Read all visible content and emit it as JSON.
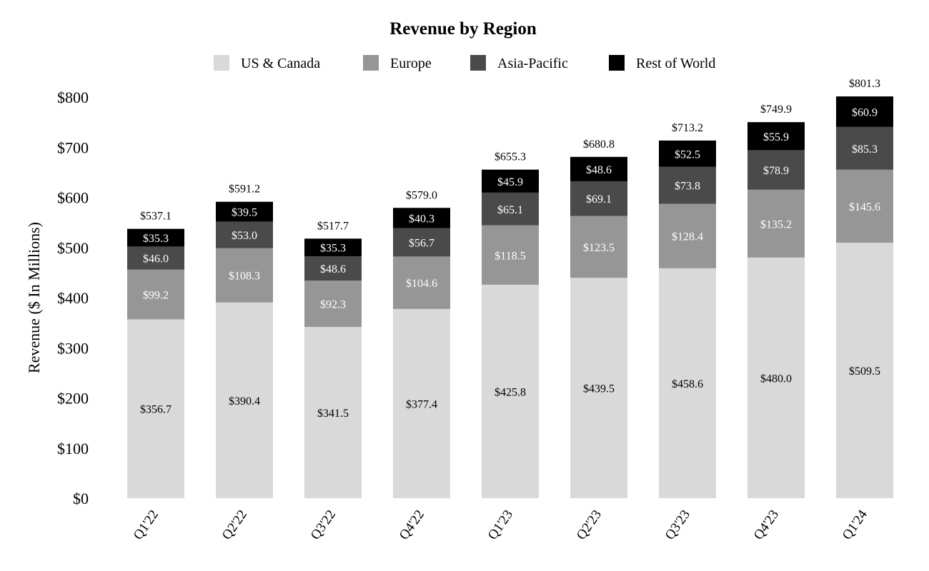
{
  "chart_data": {
    "type": "bar",
    "stacked": true,
    "title": "Revenue by Region",
    "xlabel": "",
    "ylabel": "Revenue ($ In Millions)",
    "ylim": [
      0,
      800
    ],
    "yticks": [
      0,
      100,
      200,
      300,
      400,
      500,
      600,
      700,
      800
    ],
    "ytick_labels": [
      "$0",
      "$100",
      "$200",
      "$300",
      "$400",
      "$500",
      "$600",
      "$700",
      "$800"
    ],
    "legend_position": "top",
    "categories": [
      "Q1'22",
      "Q2'22",
      "Q3'22",
      "Q4'22",
      "Q1'23",
      "Q2'23",
      "Q3'23",
      "Q4'23",
      "Q1'24"
    ],
    "series": [
      {
        "name": "US & Canada",
        "color": "#d9d9d9",
        "label_color": "#000000",
        "values": [
          356.7,
          390.4,
          341.5,
          377.4,
          425.8,
          439.5,
          458.6,
          480.0,
          509.5
        ],
        "labels": [
          "$356.7",
          "$390.4",
          "$341.5",
          "$377.4",
          "$425.8",
          "$439.5",
          "$458.6",
          "$480.0",
          "$509.5"
        ]
      },
      {
        "name": "Europe",
        "color": "#969696",
        "label_color": "#ffffff",
        "values": [
          99.2,
          108.3,
          92.3,
          104.6,
          118.5,
          123.5,
          128.4,
          135.2,
          145.6
        ],
        "labels": [
          "$99.2",
          "$108.3",
          "$92.3",
          "$104.6",
          "$118.5",
          "$123.5",
          "$128.4",
          "$135.2",
          "$145.6"
        ]
      },
      {
        "name": "Asia-Pacific",
        "color": "#4a4a4a",
        "label_color": "#ffffff",
        "values": [
          46.0,
          53.0,
          48.6,
          56.7,
          65.1,
          69.1,
          73.8,
          78.9,
          85.3
        ],
        "labels": [
          "$46.0",
          "$53.0",
          "$48.6",
          "$56.7",
          "$65.1",
          "$69.1",
          "$73.8",
          "$78.9",
          "$85.3"
        ]
      },
      {
        "name": "Rest of World",
        "color": "#000000",
        "label_color": "#ffffff",
        "values": [
          35.3,
          39.5,
          35.3,
          40.3,
          45.9,
          48.6,
          52.5,
          55.9,
          60.9
        ],
        "labels": [
          "$35.3",
          "$39.5",
          "$35.3",
          "$40.3",
          "$45.9",
          "$48.6",
          "$52.5",
          "$55.9",
          "$60.9"
        ]
      }
    ],
    "totals": [
      537.1,
      591.2,
      517.7,
      579.0,
      655.3,
      680.8,
      713.2,
      749.9,
      801.3
    ],
    "total_labels": [
      "$537.1",
      "$591.2",
      "$517.7",
      "$579.0",
      "$655.3",
      "$680.8",
      "$713.2",
      "$749.9",
      "$801.3"
    ]
  }
}
